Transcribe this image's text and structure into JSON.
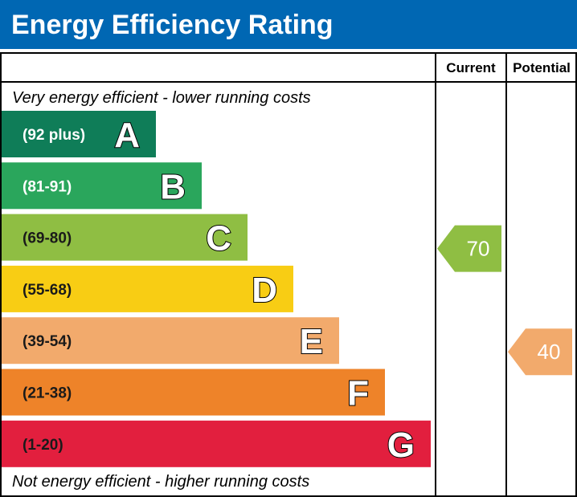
{
  "title": "Energy Efficiency Rating",
  "header_color": "#0067b3",
  "columns": {
    "current": "Current",
    "potential": "Potential"
  },
  "captions": {
    "top": "Very energy efficient - lower running costs",
    "bottom": "Not energy efficient - higher running costs"
  },
  "chart_data": {
    "type": "bar",
    "title": "Energy Efficiency Rating",
    "categories": [
      "A",
      "B",
      "C",
      "D",
      "E",
      "F",
      "G"
    ],
    "bands": [
      {
        "letter": "A",
        "range": "(92 plus)",
        "min": 92,
        "max": 100,
        "color": "#0f7d58",
        "text": "light"
      },
      {
        "letter": "B",
        "range": "(81-91)",
        "min": 81,
        "max": 91,
        "color": "#2aa65c",
        "text": "light"
      },
      {
        "letter": "C",
        "range": "(69-80)",
        "min": 69,
        "max": 80,
        "color": "#8fbe43",
        "text": "dark"
      },
      {
        "letter": "D",
        "range": "(55-68)",
        "min": 55,
        "max": 68,
        "color": "#f8cd14",
        "text": "dark"
      },
      {
        "letter": "E",
        "range": "(39-54)",
        "min": 39,
        "max": 54,
        "color": "#f2aa6c",
        "text": "dark"
      },
      {
        "letter": "F",
        "range": "(21-38)",
        "min": 21,
        "max": 38,
        "color": "#ee8329",
        "text": "dark"
      },
      {
        "letter": "G",
        "range": "(1-20)",
        "min": 1,
        "max": 20,
        "color": "#e21f3e",
        "text": "dark"
      }
    ],
    "ratings": [
      {
        "column": "current",
        "value": 70,
        "band": "C",
        "color": "#8fbe43"
      },
      {
        "column": "potential",
        "value": 40,
        "band": "E",
        "color": "#f2aa6c"
      }
    ]
  }
}
